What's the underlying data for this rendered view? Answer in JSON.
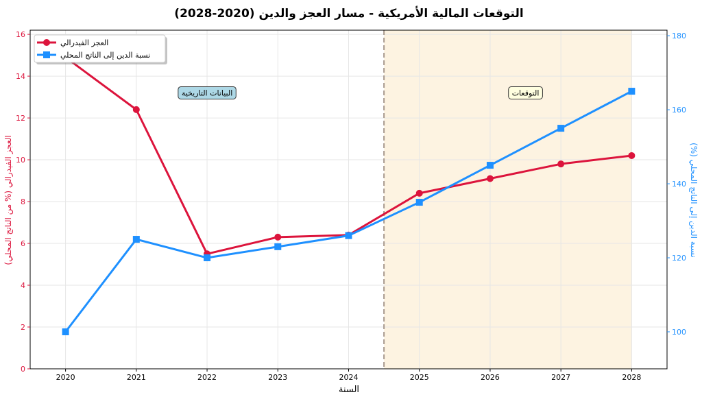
{
  "chart_data": {
    "type": "line",
    "title": "التوقعات المالية الأمريكية - مسار العجز والدين (2020-2028)",
    "xlabel": "السنة",
    "ylabel_left": "العجز الفيدرالي (% من الناتج المحلي)",
    "ylabel_right": "نسبة الدين إلى الناتج المحلي (%)",
    "x": [
      2020,
      2021,
      2022,
      2023,
      2024,
      2025,
      2026,
      2027,
      2028
    ],
    "x_range": [
      2019.5,
      2028.5
    ],
    "ylim_left": [
      0,
      16.2
    ],
    "ylim_right": [
      90,
      181.5
    ],
    "yticks_left": [
      0,
      2,
      4,
      6,
      8,
      10,
      12,
      14,
      16
    ],
    "yticks_right": [
      100,
      120,
      140,
      160,
      180
    ],
    "grid": true,
    "legend_placement": "top-left",
    "series": [
      {
        "name": "العجز الفيدرالي",
        "axis": "left",
        "color": "#DC143C",
        "marker": "circle",
        "values": [
          14.9,
          12.4,
          5.5,
          6.3,
          6.4,
          8.4,
          9.1,
          9.8,
          10.2
        ]
      },
      {
        "name": "نسبة الدين إلى الناتج المحلي",
        "axis": "right",
        "color": "#1E90FF",
        "marker": "square",
        "values": [
          100,
          125,
          120,
          123,
          126,
          135,
          145,
          155,
          165
        ]
      }
    ],
    "divider_x": 2024.5,
    "forecast_region": [
      2024.5,
      2028
    ],
    "annotations": [
      {
        "text": "البيانات التاريخية",
        "x": 2022,
        "y_left": 13.2,
        "style": "historical"
      },
      {
        "text": "التوقعات",
        "x": 2026.5,
        "y_left": 13.2,
        "style": "forecast"
      }
    ],
    "colors": {
      "left_axis": "#DC143C",
      "right_axis": "#1E90FF",
      "forecast_fill": "#FDF3E1",
      "divider": "#A89A8E",
      "historical_box": "#ADD8E6",
      "forecast_box": "#FFFFE0"
    }
  }
}
